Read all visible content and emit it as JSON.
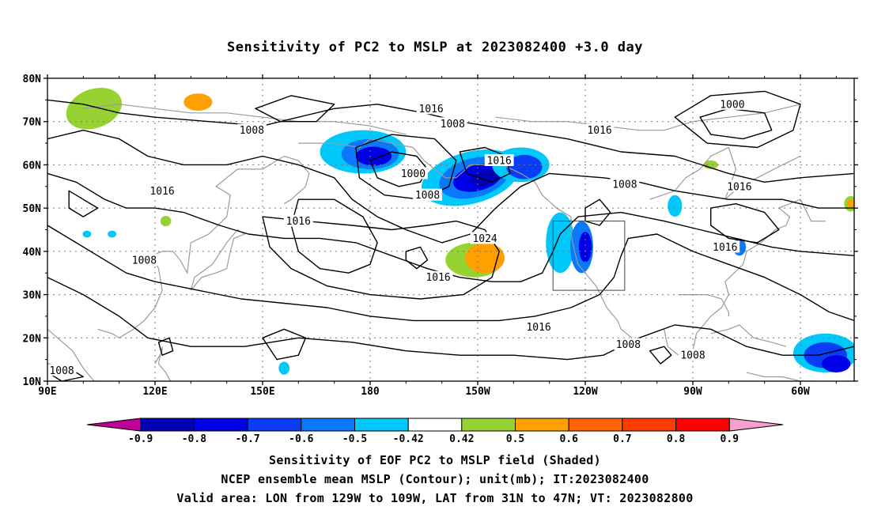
{
  "title": "Sensitivity of PC2 to MSLP at 2023082400 +3.0 day",
  "map": {
    "lat_labels": [
      "80N",
      "70N",
      "60N",
      "50N",
      "40N",
      "30N",
      "20N",
      "10N"
    ],
    "lon_labels": [
      "90E",
      "120E",
      "150E",
      "180",
      "150W",
      "120W",
      "90W",
      "60W"
    ],
    "lon_range": [
      90,
      315
    ],
    "lat_range": [
      10,
      80
    ],
    "grid": "dotted",
    "valid_box": {
      "lon_from": 231,
      "lon_to": 251,
      "lat_from": 31,
      "lat_to": 47
    },
    "contour_labels": [
      {
        "text": "1016",
        "lon": 197,
        "lat": 73
      },
      {
        "text": "1008",
        "lon": 203,
        "lat": 69.5
      },
      {
        "text": "1016",
        "lon": 244,
        "lat": 68
      },
      {
        "text": "1000",
        "lon": 281,
        "lat": 74
      },
      {
        "text": "1008",
        "lon": 147,
        "lat": 68
      },
      {
        "text": "1016",
        "lon": 122,
        "lat": 54
      },
      {
        "text": "1000",
        "lon": 192,
        "lat": 58
      },
      {
        "text": "1016",
        "lon": 216,
        "lat": 61
      },
      {
        "text": "1008",
        "lon": 196,
        "lat": 53
      },
      {
        "text": "1008",
        "lon": 251,
        "lat": 55.5
      },
      {
        "text": "1016",
        "lon": 283,
        "lat": 55
      },
      {
        "text": "1016",
        "lon": 160,
        "lat": 47
      },
      {
        "text": "1024",
        "lon": 212,
        "lat": 43
      },
      {
        "text": "1008",
        "lon": 117,
        "lat": 38
      },
      {
        "text": "1016",
        "lon": 279,
        "lat": 41
      },
      {
        "text": "1016",
        "lon": 199,
        "lat": 34
      },
      {
        "text": "1016",
        "lon": 227,
        "lat": 22.5
      },
      {
        "text": "1008",
        "lon": 252,
        "lat": 18.5
      },
      {
        "text": "1008",
        "lon": 270,
        "lat": 16
      },
      {
        "text": "1008",
        "lon": 94,
        "lat": 12.5
      }
    ]
  },
  "colorbar": {
    "levels": [
      "-0.9",
      "-0.8",
      "-0.7",
      "-0.6",
      "-0.5",
      "-0.42",
      "0.42",
      "0.5",
      "0.6",
      "0.7",
      "0.8",
      "0.9"
    ],
    "colors": [
      "#be0096",
      "#0000b4",
      "#0000e6",
      "#0a3cf5",
      "#0a78fa",
      "#00c8fa",
      "#ffffff",
      "#96d232",
      "#ffa000",
      "#ff6400",
      "#ff3c00",
      "#ff0000",
      "#f5a0cd"
    ]
  },
  "captions": {
    "line1": "Sensitivity of EOF PC2 to MSLP field (Shaded)",
    "line2": "NCEP ensemble mean MSLP (Contour); unit(mb); IT:2023082400",
    "line3": "Valid area: LON from 129W to 109W, LAT from 31N to 47N; VT: 2023082800"
  }
}
